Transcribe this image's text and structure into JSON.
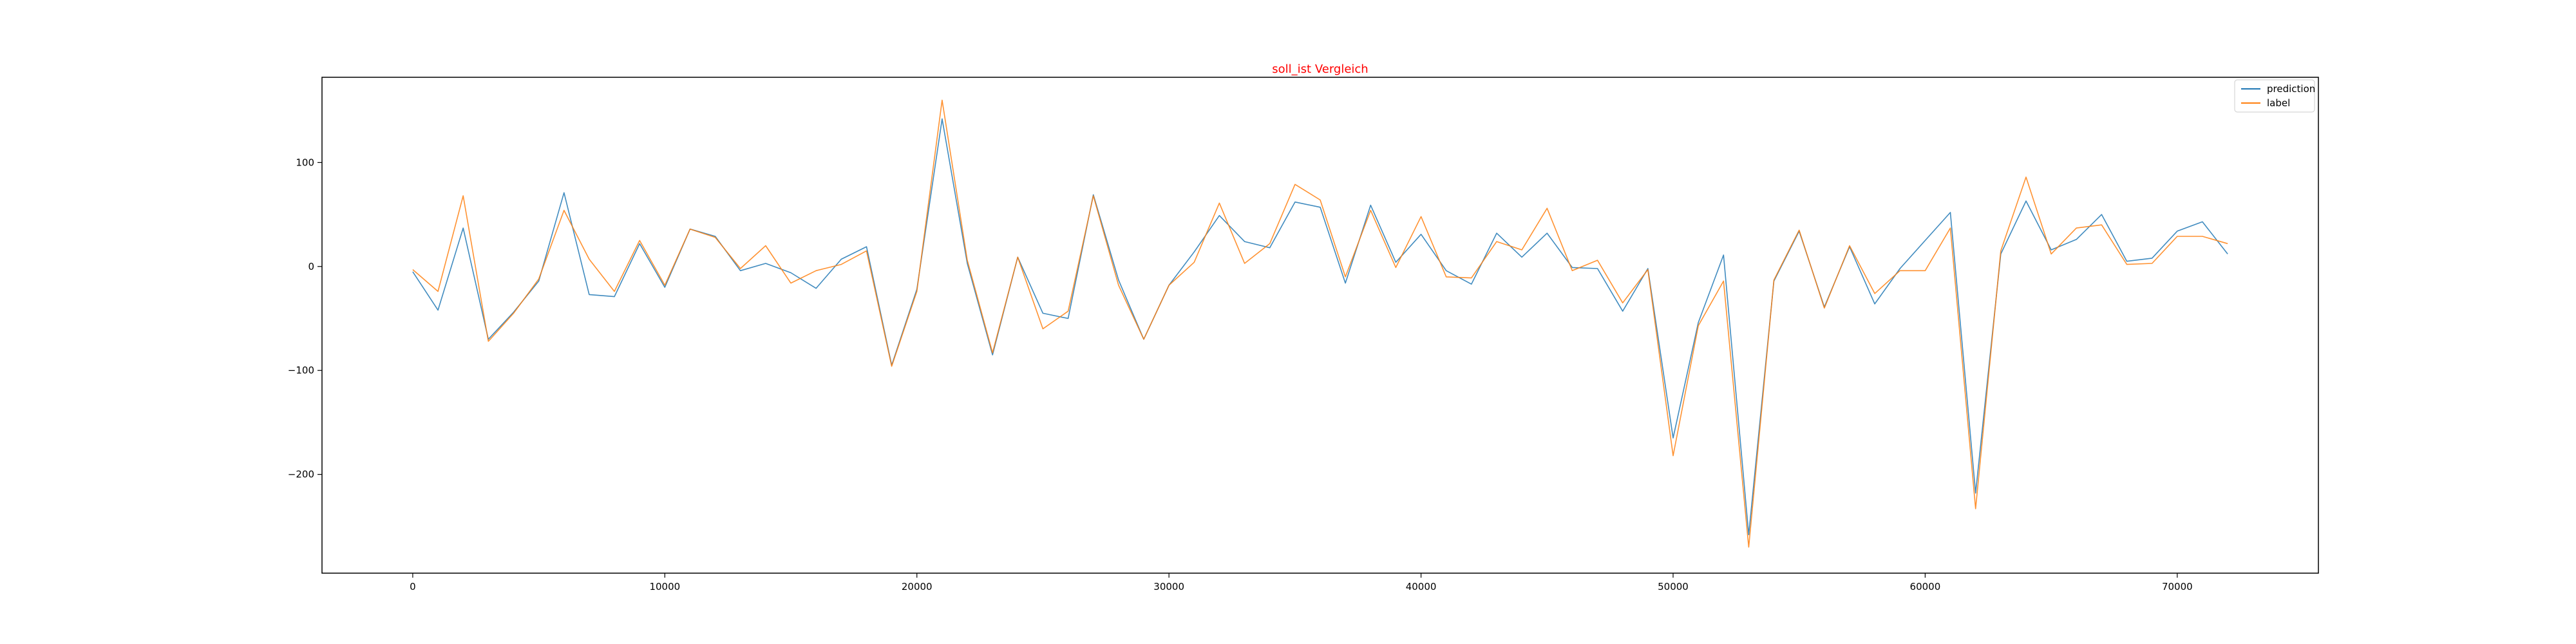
{
  "chart_data": {
    "type": "line",
    "title": "soll_ist Vergleich",
    "title_color": "#ff0000",
    "xlabel": "",
    "ylabel": "",
    "xlim": [
      -3600,
      75600
    ],
    "ylim": [
      -295,
      182
    ],
    "xticks": [
      0,
      10000,
      20000,
      30000,
      40000,
      50000,
      60000,
      70000
    ],
    "xtick_labels": [
      "0",
      "10000",
      "20000",
      "30000",
      "40000",
      "50000",
      "60000",
      "70000"
    ],
    "yticks": [
      -200,
      -100,
      0,
      100
    ],
    "ytick_labels": [
      "−200",
      "−100",
      "0",
      "100"
    ],
    "grid": false,
    "legend_position": "top-right",
    "x_step": 1000,
    "series": [
      {
        "name": "prediction",
        "color": "#1f77b4",
        "values": [
          -5,
          -42,
          37,
          -70,
          -44,
          -14,
          71,
          -27,
          -29,
          22,
          -20,
          36,
          29,
          -4,
          3,
          -6,
          -21,
          7,
          19,
          -95,
          -22,
          142,
          3,
          -85,
          9,
          -45,
          -50,
          69,
          -13,
          -70,
          -18,
          14,
          49,
          24,
          18,
          62,
          57,
          -16,
          59,
          4,
          31,
          -4,
          -17,
          32,
          9,
          32,
          -1,
          -2,
          -43,
          -2,
          -165,
          -54,
          11,
          -258,
          -14,
          34,
          -39,
          19,
          -36,
          -2,
          25,
          52,
          -218,
          12,
          63,
          16,
          26,
          50,
          5,
          8,
          34,
          43,
          12
        ]
      },
      {
        "name": "label",
        "color": "#ff7f0e",
        "values": [
          -3,
          -24,
          68,
          -72,
          -45,
          -12,
          54,
          7,
          -24,
          25,
          -18,
          36,
          28,
          -2,
          20,
          -16,
          -4,
          2,
          15,
          -96,
          -24,
          160,
          6,
          -83,
          9,
          -60,
          -43,
          68,
          -18,
          -70,
          -18,
          4,
          61,
          3,
          22,
          79,
          64,
          -10,
          54,
          -1,
          48,
          -10,
          -11,
          24,
          16,
          56,
          -4,
          6,
          -35,
          -3,
          -182,
          -57,
          -14,
          -270,
          -13,
          35,
          -40,
          20,
          -26,
          -4,
          -4,
          37,
          -233,
          15,
          86,
          12,
          37,
          40,
          2,
          3,
          29,
          29,
          22
        ]
      }
    ]
  }
}
